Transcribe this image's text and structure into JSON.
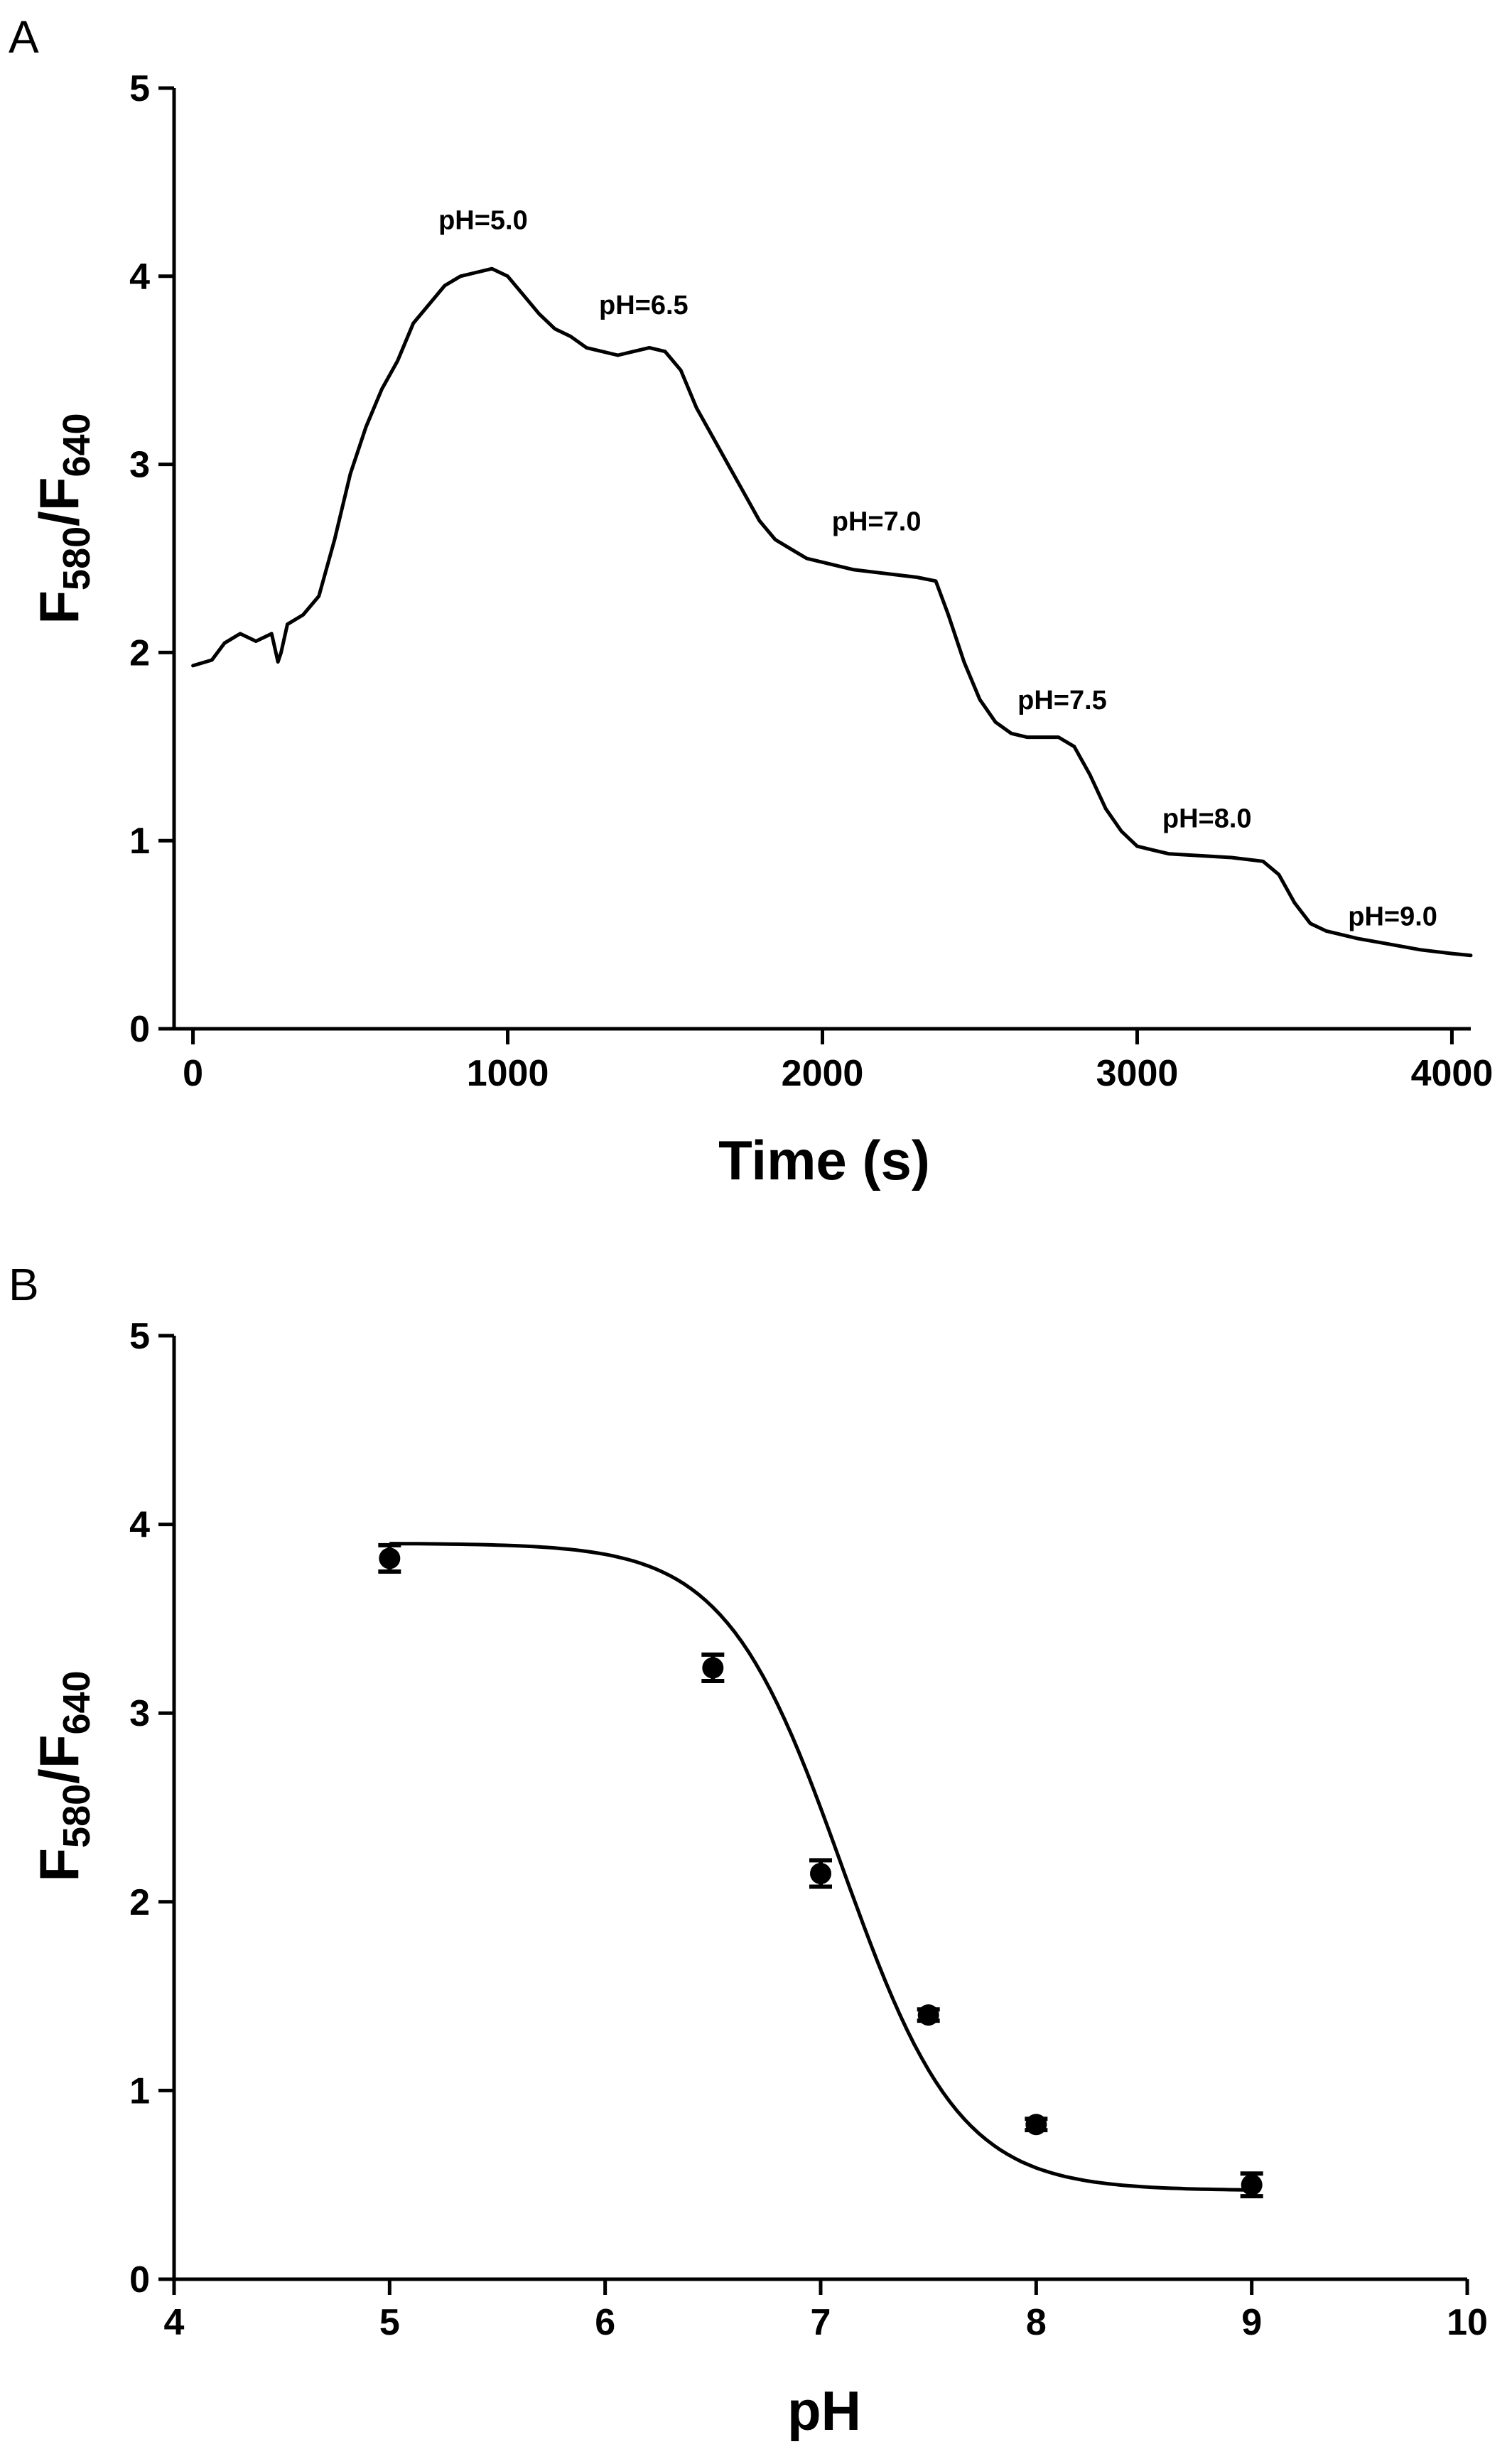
{
  "chart_data": [
    {
      "panel": "A",
      "type": "line",
      "xlabel": "Time (s)",
      "ylabel": {
        "main": "F",
        "sub1": "580",
        "sep": "/F",
        "sub2": "640"
      },
      "xlim": [
        -60,
        4060
      ],
      "ylim": [
        0,
        5
      ],
      "xticks": [
        0,
        1000,
        2000,
        3000,
        4000
      ],
      "yticks": [
        0,
        1,
        2,
        3,
        4,
        5
      ],
      "grid": false,
      "line_color": "#000000",
      "series": [
        {
          "x": [
            0,
            60,
            100,
            150,
            200,
            250,
            270,
            280,
            300,
            350,
            400,
            450,
            500,
            550,
            600,
            650,
            700,
            750,
            800,
            850,
            900,
            950,
            1000,
            1050,
            1100,
            1150,
            1200,
            1250,
            1300,
            1350,
            1400,
            1450,
            1500,
            1550,
            1600,
            1650,
            1700,
            1750,
            1800,
            1850,
            1900,
            1950,
            2000,
            2100,
            2200,
            2300,
            2360,
            2400,
            2450,
            2500,
            2550,
            2600,
            2650,
            2700,
            2750,
            2800,
            2850,
            2900,
            2950,
            3000,
            3050,
            3100,
            3200,
            3300,
            3400,
            3450,
            3500,
            3550,
            3600,
            3700,
            3800,
            3900,
            4000,
            4060
          ],
          "y": [
            1.93,
            1.96,
            2.05,
            2.1,
            2.06,
            2.1,
            1.95,
            2.0,
            2.15,
            2.2,
            2.3,
            2.6,
            2.95,
            3.2,
            3.4,
            3.55,
            3.75,
            3.85,
            3.95,
            4.0,
            4.02,
            4.04,
            4.0,
            3.9,
            3.8,
            3.72,
            3.68,
            3.62,
            3.6,
            3.58,
            3.6,
            3.62,
            3.6,
            3.5,
            3.3,
            3.15,
            3.0,
            2.85,
            2.7,
            2.6,
            2.55,
            2.5,
            2.48,
            2.44,
            2.42,
            2.4,
            2.38,
            2.2,
            1.95,
            1.75,
            1.63,
            1.57,
            1.55,
            1.55,
            1.55,
            1.5,
            1.35,
            1.17,
            1.05,
            0.97,
            0.95,
            0.93,
            0.92,
            0.91,
            0.89,
            0.82,
            0.67,
            0.56,
            0.52,
            0.48,
            0.45,
            0.42,
            0.4,
            0.39
          ]
        }
      ],
      "annotations": [
        {
          "text": "pH=5.0",
          "x": 780,
          "y": 4.25
        },
        {
          "text": "pH=6.5",
          "x": 1290,
          "y": 3.8
        },
        {
          "text": "pH=7.0",
          "x": 2030,
          "y": 2.65
        },
        {
          "text": "pH=7.5",
          "x": 2620,
          "y": 1.7
        },
        {
          "text": "pH=8.0",
          "x": 3080,
          "y": 1.07
        },
        {
          "text": "pH=9.0",
          "x": 3670,
          "y": 0.55
        }
      ]
    },
    {
      "panel": "B",
      "type": "scatter",
      "xlabel": "pH",
      "ylabel": {
        "main": "F",
        "sub1": "580",
        "sep": "/F",
        "sub2": "640"
      },
      "xlim": [
        4,
        10
      ],
      "ylim": [
        0,
        5
      ],
      "xticks": [
        4,
        5,
        6,
        7,
        8,
        9,
        10
      ],
      "yticks": [
        0,
        1,
        2,
        3,
        4,
        5
      ],
      "grid": false,
      "points": [
        {
          "x": 5.0,
          "y": 3.82,
          "err": 0.07
        },
        {
          "x": 6.5,
          "y": 3.24,
          "err": 0.07
        },
        {
          "x": 7.0,
          "y": 2.15,
          "err": 0.07
        },
        {
          "x": 7.5,
          "y": 1.4,
          "err": 0.03
        },
        {
          "x": 8.0,
          "y": 0.82,
          "err": 0.03
        },
        {
          "x": 9.0,
          "y": 0.5,
          "err": 0.06
        }
      ],
      "fit": {
        "model": "sigmoid",
        "bottom": 0.47,
        "top": 3.9,
        "pKa": 7.1,
        "slope": 1.6,
        "x_range": [
          5,
          9
        ]
      },
      "marker_color": "#000000"
    }
  ]
}
